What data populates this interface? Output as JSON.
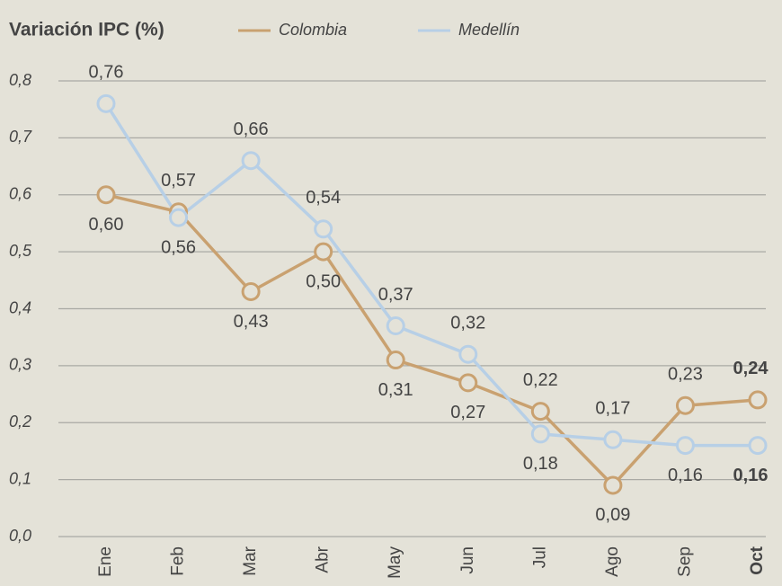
{
  "chart_data": {
    "type": "line",
    "title": "Variación IPC (%)",
    "categories": [
      "Ene",
      "Feb",
      "Mar",
      "Abr",
      "May",
      "Jun",
      "Jul",
      "Ago",
      "Sep",
      "Oct"
    ],
    "series": [
      {
        "name": "Colombia",
        "color": "#c9a170",
        "values": [
          0.6,
          0.57,
          0.43,
          0.5,
          0.31,
          0.27,
          0.22,
          0.09,
          0.23,
          0.24
        ],
        "value_labels": [
          "0,60",
          "0,57",
          "0,43",
          "0,50",
          "0,31",
          "0,27",
          "0,22",
          "0,09",
          "0,23",
          "0,24"
        ]
      },
      {
        "name": "Medellín",
        "color": "#b7cfe6",
        "values": [
          0.76,
          0.56,
          0.66,
          0.54,
          0.37,
          0.32,
          0.18,
          0.17,
          0.16,
          0.16
        ],
        "value_labels": [
          "0,76",
          "0,56",
          "0,66",
          "0,54",
          "0,37",
          "0,32",
          "0,18",
          "0,17",
          "0,16",
          "0,16"
        ]
      }
    ],
    "ylim": [
      0,
      0.8
    ],
    "yticks": [
      {
        "value": 0,
        "label": "0,0"
      },
      {
        "value": 0.1,
        "label": "0,1"
      },
      {
        "value": 0.2,
        "label": "0,2"
      },
      {
        "value": 0.3,
        "label": "0,3"
      },
      {
        "value": 0.4,
        "label": "0,4"
      },
      {
        "value": 0.5,
        "label": "0,5"
      },
      {
        "value": 0.6,
        "label": "0,6"
      },
      {
        "value": 0.7,
        "label": "0,7"
      },
      {
        "value": 0.8,
        "label": "0,8"
      }
    ],
    "grid": true
  }
}
